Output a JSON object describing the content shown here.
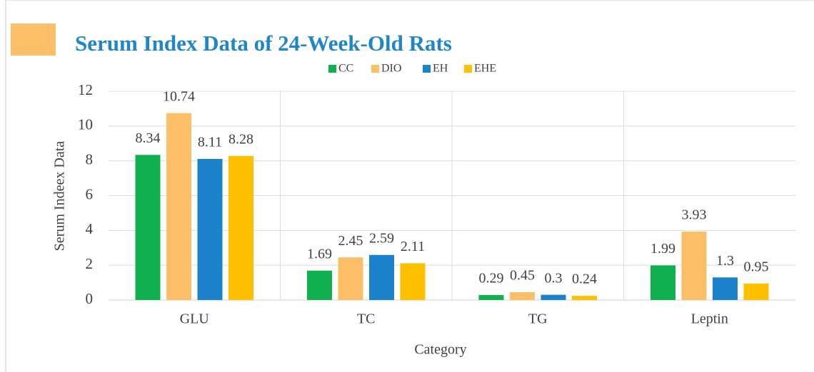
{
  "chart_data": {
    "type": "bar",
    "title": "Serum Index Data of 24-Week-Old Rats",
    "x_label": "Category",
    "y_label": "Serum Indeex Data",
    "categories": [
      "GLU",
      "TC",
      "TG",
      "Leptin"
    ],
    "series": [
      {
        "name": "CC",
        "color": "#10b050",
        "values": [
          8.34,
          1.69,
          0.29,
          1.99
        ]
      },
      {
        "name": "DIO",
        "color": "#fcbf67",
        "values": [
          10.74,
          2.45,
          0.45,
          3.93
        ]
      },
      {
        "name": "EH",
        "color": "#1c82cc",
        "values": [
          8.11,
          2.59,
          0.3,
          1.3
        ]
      },
      {
        "name": "EHE",
        "color": "#ffc000",
        "values": [
          8.28,
          2.11,
          0.24,
          0.95
        ]
      }
    ],
    "ylim": [
      0,
      12
    ],
    "yticks": [
      0,
      2,
      4,
      6,
      8,
      10,
      12
    ],
    "grid": true,
    "legend": "top"
  }
}
